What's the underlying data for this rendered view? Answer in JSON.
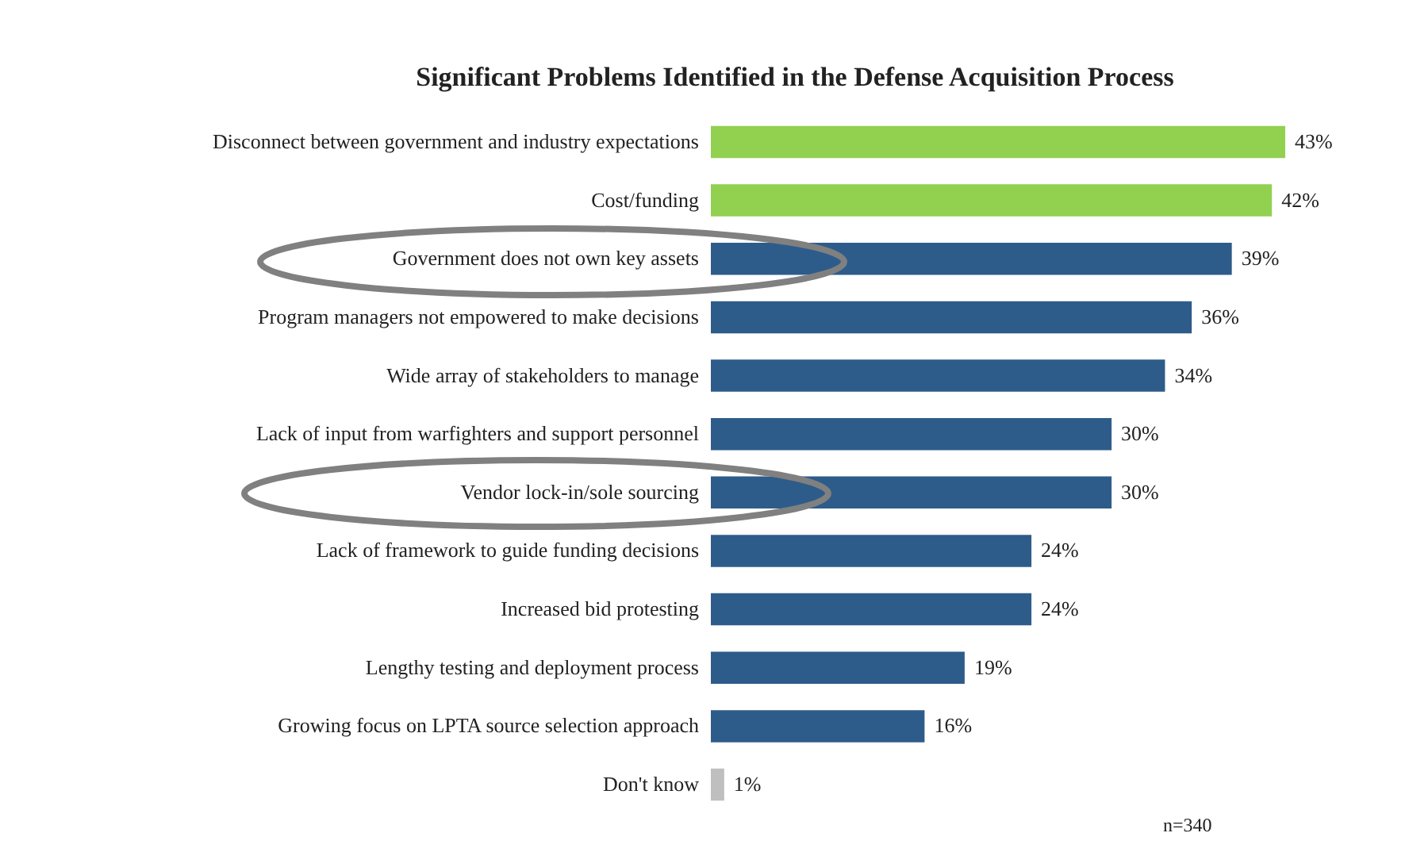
{
  "chart_data": {
    "type": "bar",
    "orientation": "horizontal",
    "title": "Significant Problems Identified in the Defense Acquisition Process",
    "categories": [
      "Disconnect between government and industry expectations",
      "Cost/funding",
      "Government does not own key assets",
      "Program managers not empowered to make decisions",
      "Wide array of stakeholders to manage",
      "Lack of input from warfighters and support personnel",
      "Vendor lock-in/sole sourcing",
      "Lack of framework to guide funding decisions",
      "Increased bid protesting",
      "Lengthy testing and deployment process",
      "Growing focus on LPTA source selection approach",
      "Don't know"
    ],
    "values": [
      43,
      42,
      39,
      36,
      34,
      30,
      30,
      24,
      24,
      19,
      16,
      1
    ],
    "colors": [
      "#92d050",
      "#92d050",
      "#2e5c8a",
      "#2e5c8a",
      "#2e5c8a",
      "#2e5c8a",
      "#2e5c8a",
      "#2e5c8a",
      "#2e5c8a",
      "#2e5c8a",
      "#2e5c8a",
      "#bfbfbf"
    ],
    "value_labels": [
      "43%",
      "42%",
      "39%",
      "36%",
      "34%",
      "30%",
      "30%",
      "24%",
      "24%",
      "19%",
      "16%",
      "1%"
    ],
    "annotations": [
      "n=340"
    ]
  }
}
